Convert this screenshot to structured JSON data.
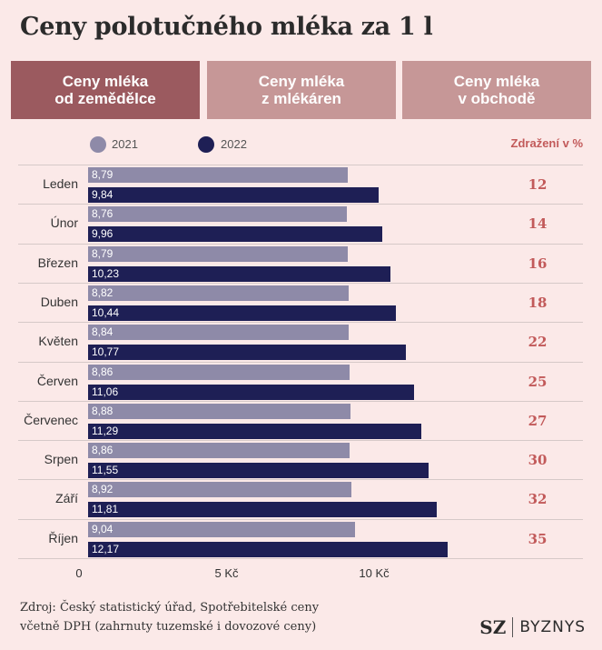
{
  "title": "Ceny polotučného mléka za 1 l",
  "tabs": [
    {
      "label": "Ceny mléka\nod zemědělce",
      "active": true
    },
    {
      "label": "Ceny mléka\nz mlékáren",
      "active": false
    },
    {
      "label": "Ceny mléka\nv obchodě",
      "active": false
    }
  ],
  "legend": {
    "series_2021": "2021",
    "series_2022": "2022",
    "growth_header": "Zdražení v %"
  },
  "colors": {
    "series_2021": "#8e8aa8",
    "series_2022": "#1e1f55",
    "accent": "#c25a5a",
    "tab_active": "#9b5a5f",
    "tab_inactive": "#c69797"
  },
  "chart_data": {
    "type": "bar",
    "orientation": "horizontal",
    "categories": [
      "Leden",
      "Únor",
      "Březen",
      "Duben",
      "Květen",
      "Červen",
      "Červenec",
      "Srpen",
      "Září",
      "Říjen"
    ],
    "series": [
      {
        "name": "2021",
        "values": [
          8.79,
          8.76,
          8.79,
          8.82,
          8.84,
          8.86,
          8.88,
          8.86,
          8.92,
          9.04
        ],
        "labels": [
          "8,79",
          "8,76",
          "8,79",
          "8,82",
          "8,84",
          "8,86",
          "8,88",
          "8,86",
          "8,92",
          "9,04"
        ]
      },
      {
        "name": "2022",
        "values": [
          9.84,
          9.96,
          10.23,
          10.44,
          10.77,
          11.06,
          11.29,
          11.55,
          11.81,
          12.17
        ],
        "labels": [
          "9,84",
          "9,96",
          "10,23",
          "10,44",
          "10,77",
          "11,06",
          "11,29",
          "11,55",
          "11,81",
          "12,17"
        ]
      }
    ],
    "growth_percent": [
      12,
      14,
      16,
      18,
      22,
      25,
      27,
      30,
      32,
      35
    ],
    "xlim": [
      0,
      12.5
    ],
    "x_ticks": [
      {
        "value": 0,
        "label": "0"
      },
      {
        "value": 5,
        "label": "5 Kč"
      },
      {
        "value": 10,
        "label": "10 Kč"
      }
    ]
  },
  "source": "Zdroj: Český statistický úřad, Spotřebitelské ceny\nvčetně DPH (zahrnuty tuzemské i dovozové ceny)",
  "logo": {
    "sz": "SZ",
    "byznys": "BYZNYS"
  }
}
